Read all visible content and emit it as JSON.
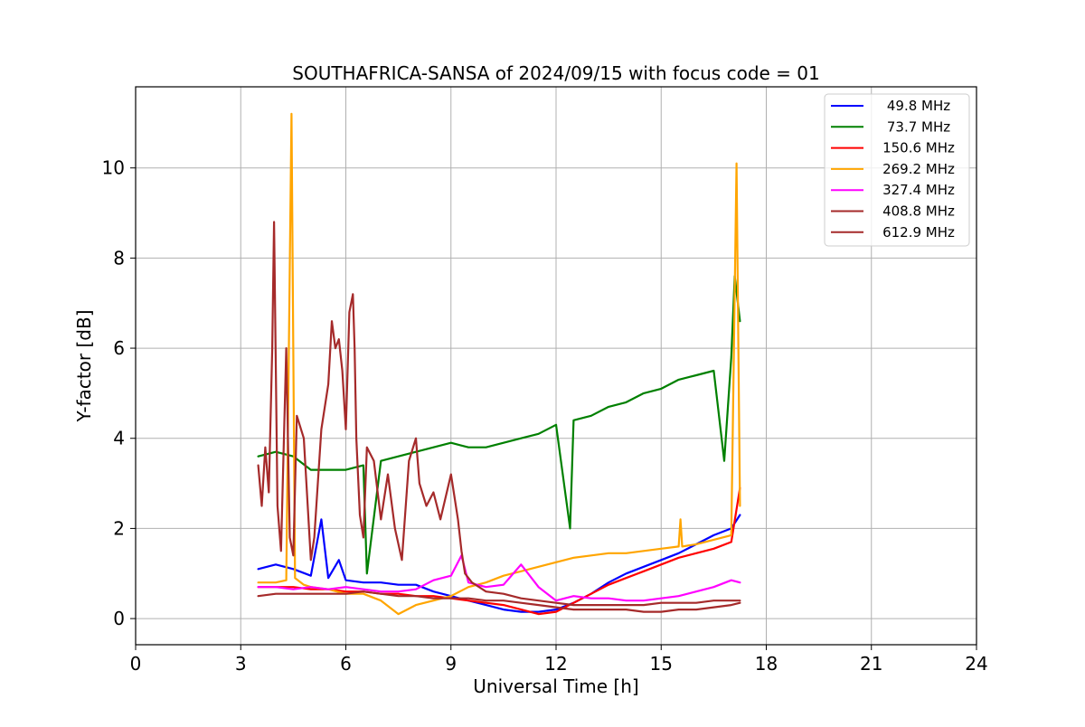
{
  "chart_data": {
    "type": "line",
    "title": "SOUTHAFRICA-SANSA of 2024/09/15 with focus code = 01",
    "xlabel": "Universal Time [h]",
    "ylabel": "Y-factor [dB]",
    "xlim": [
      0,
      24
    ],
    "ylim": [
      -0.58,
      11.8
    ],
    "xticks": [
      0,
      3,
      6,
      9,
      12,
      15,
      18,
      21,
      24
    ],
    "xtick_labels": [
      "0",
      "3",
      "6",
      "9",
      "12",
      "15",
      "18",
      "21",
      "24"
    ],
    "yticks": [
      0,
      2,
      4,
      6,
      8,
      10
    ],
    "ytick_labels": [
      "0",
      "2",
      "4",
      "6",
      "8",
      "10"
    ],
    "grid": true,
    "legend_position": "top-right",
    "series": [
      {
        "name": "49.8 MHz",
        "color": "#0000ff",
        "x": [
          3.5,
          4.0,
          4.5,
          5.0,
          5.3,
          5.5,
          5.8,
          6.0,
          6.5,
          7.0,
          7.5,
          8.0,
          8.5,
          9.0,
          9.5,
          10.0,
          10.5,
          11.0,
          11.5,
          12.0,
          12.5,
          13.0,
          13.5,
          14.0,
          14.5,
          15.0,
          15.5,
          16.0,
          16.5,
          17.0,
          17.25
        ],
        "y": [
          1.1,
          1.2,
          1.1,
          0.95,
          2.2,
          0.9,
          1.3,
          0.85,
          0.8,
          0.8,
          0.75,
          0.75,
          0.6,
          0.5,
          0.4,
          0.3,
          0.2,
          0.15,
          0.15,
          0.2,
          0.35,
          0.55,
          0.8,
          1.0,
          1.15,
          1.3,
          1.45,
          1.65,
          1.85,
          2.0,
          2.3
        ]
      },
      {
        "name": "73.7 MHz",
        "color": "#008000",
        "x": [
          3.5,
          4.0,
          4.5,
          5.0,
          5.5,
          6.0,
          6.5,
          6.6,
          7.0,
          7.5,
          8.0,
          8.5,
          9.0,
          9.5,
          10.0,
          10.5,
          11.0,
          11.5,
          12.0,
          12.4,
          12.5,
          13.0,
          13.5,
          14.0,
          14.5,
          15.0,
          15.5,
          16.0,
          16.5,
          16.8,
          17.0,
          17.1,
          17.25
        ],
        "y": [
          3.6,
          3.7,
          3.6,
          3.3,
          3.3,
          3.3,
          3.4,
          1.0,
          3.5,
          3.6,
          3.7,
          3.8,
          3.9,
          3.8,
          3.8,
          3.9,
          4.0,
          4.1,
          4.3,
          2.0,
          4.4,
          4.5,
          4.7,
          4.8,
          5.0,
          5.1,
          5.3,
          5.4,
          5.5,
          3.5,
          5.8,
          7.6,
          6.6
        ]
      },
      {
        "name": "150.6 MHz",
        "color": "#ff0000",
        "x": [
          3.5,
          4.0,
          4.5,
          5.0,
          5.5,
          6.0,
          6.5,
          7.0,
          7.5,
          8.0,
          8.5,
          9.0,
          9.5,
          10.0,
          10.5,
          11.0,
          11.5,
          12.0,
          12.5,
          13.0,
          13.5,
          14.0,
          14.5,
          15.0,
          15.5,
          16.0,
          16.5,
          17.0,
          17.25
        ],
        "y": [
          0.7,
          0.7,
          0.7,
          0.65,
          0.65,
          0.6,
          0.6,
          0.55,
          0.55,
          0.5,
          0.5,
          0.45,
          0.4,
          0.35,
          0.3,
          0.2,
          0.1,
          0.15,
          0.35,
          0.55,
          0.75,
          0.9,
          1.05,
          1.2,
          1.35,
          1.45,
          1.55,
          1.7,
          2.9
        ]
      },
      {
        "name": "269.2 MHz",
        "color": "#ffa500",
        "x": [
          3.5,
          4.0,
          4.3,
          4.45,
          4.55,
          4.8,
          5.0,
          5.5,
          6.0,
          6.5,
          7.0,
          7.5,
          8.0,
          8.5,
          9.0,
          9.5,
          10.0,
          10.5,
          11.0,
          11.5,
          12.0,
          12.5,
          13.0,
          13.5,
          14.0,
          14.5,
          15.0,
          15.5,
          15.55,
          15.6,
          16.0,
          16.5,
          17.0,
          17.15,
          17.25
        ],
        "y": [
          0.8,
          0.8,
          0.85,
          11.2,
          0.9,
          0.75,
          0.7,
          0.65,
          0.55,
          0.55,
          0.4,
          0.1,
          0.3,
          0.4,
          0.5,
          0.7,
          0.8,
          0.95,
          1.05,
          1.15,
          1.25,
          1.35,
          1.4,
          1.45,
          1.45,
          1.5,
          1.55,
          1.6,
          2.2,
          1.6,
          1.65,
          1.75,
          1.85,
          10.1,
          2.5
        ]
      },
      {
        "name": "327.4 MHz",
        "color": "#ff00ff",
        "x": [
          3.5,
          4.0,
          4.5,
          5.0,
          5.5,
          6.0,
          6.5,
          7.0,
          7.5,
          8.0,
          8.5,
          9.0,
          9.3,
          9.5,
          10.0,
          10.5,
          11.0,
          11.5,
          12.0,
          12.5,
          13.0,
          13.5,
          14.0,
          14.5,
          15.0,
          15.5,
          16.0,
          16.5,
          17.0,
          17.25
        ],
        "y": [
          0.7,
          0.7,
          0.65,
          0.7,
          0.65,
          0.7,
          0.65,
          0.6,
          0.6,
          0.65,
          0.85,
          0.95,
          1.4,
          0.8,
          0.7,
          0.75,
          1.2,
          0.7,
          0.4,
          0.5,
          0.45,
          0.45,
          0.4,
          0.4,
          0.45,
          0.5,
          0.6,
          0.7,
          0.85,
          0.8
        ]
      },
      {
        "name": "408.8 MHz",
        "color": "#a52a2a",
        "x": [
          3.5,
          4.0,
          4.5,
          5.0,
          5.5,
          6.0,
          6.5,
          7.0,
          7.5,
          8.0,
          8.5,
          9.0,
          9.5,
          10.0,
          10.5,
          11.0,
          11.5,
          12.0,
          12.5,
          13.0,
          13.5,
          14.0,
          14.5,
          15.0,
          15.5,
          16.0,
          16.5,
          17.0,
          17.25
        ],
        "y": [
          0.5,
          0.55,
          0.55,
          0.55,
          0.55,
          0.55,
          0.6,
          0.55,
          0.5,
          0.5,
          0.45,
          0.45,
          0.45,
          0.4,
          0.4,
          0.35,
          0.3,
          0.25,
          0.2,
          0.2,
          0.2,
          0.2,
          0.15,
          0.15,
          0.2,
          0.2,
          0.25,
          0.3,
          0.35
        ]
      },
      {
        "name": "612.9 MHz",
        "color": "#a52a2a",
        "x": [
          3.5,
          3.6,
          3.7,
          3.8,
          3.9,
          3.95,
          4.05,
          4.15,
          4.3,
          4.4,
          4.5,
          4.6,
          4.8,
          5.0,
          5.1,
          5.3,
          5.5,
          5.6,
          5.7,
          5.8,
          5.9,
          6.0,
          6.1,
          6.2,
          6.25,
          6.3,
          6.4,
          6.5,
          6.6,
          6.8,
          7.0,
          7.2,
          7.4,
          7.6,
          7.8,
          8.0,
          8.1,
          8.3,
          8.5,
          8.7,
          9.0,
          9.2,
          9.3,
          9.4,
          9.6,
          9.8,
          10.0,
          10.5,
          11.0,
          11.5,
          12.0,
          12.5,
          13.0,
          13.5,
          14.0,
          14.5,
          15.0,
          15.5,
          16.0,
          16.5,
          17.0,
          17.25
        ],
        "y": [
          3.4,
          2.5,
          3.8,
          2.8,
          6.0,
          8.8,
          2.5,
          1.5,
          6.0,
          1.8,
          1.4,
          4.5,
          4.0,
          1.3,
          1.8,
          4.2,
          5.2,
          6.6,
          6.0,
          6.2,
          5.5,
          4.2,
          6.8,
          7.2,
          6.0,
          4.0,
          2.3,
          1.8,
          3.8,
          3.5,
          2.2,
          3.2,
          2.0,
          1.3,
          3.5,
          4.0,
          3.0,
          2.5,
          2.8,
          2.2,
          3.2,
          2.2,
          1.5,
          1.0,
          0.8,
          0.7,
          0.6,
          0.55,
          0.45,
          0.4,
          0.35,
          0.3,
          0.3,
          0.3,
          0.3,
          0.3,
          0.35,
          0.35,
          0.35,
          0.4,
          0.4,
          0.4
        ]
      }
    ]
  }
}
